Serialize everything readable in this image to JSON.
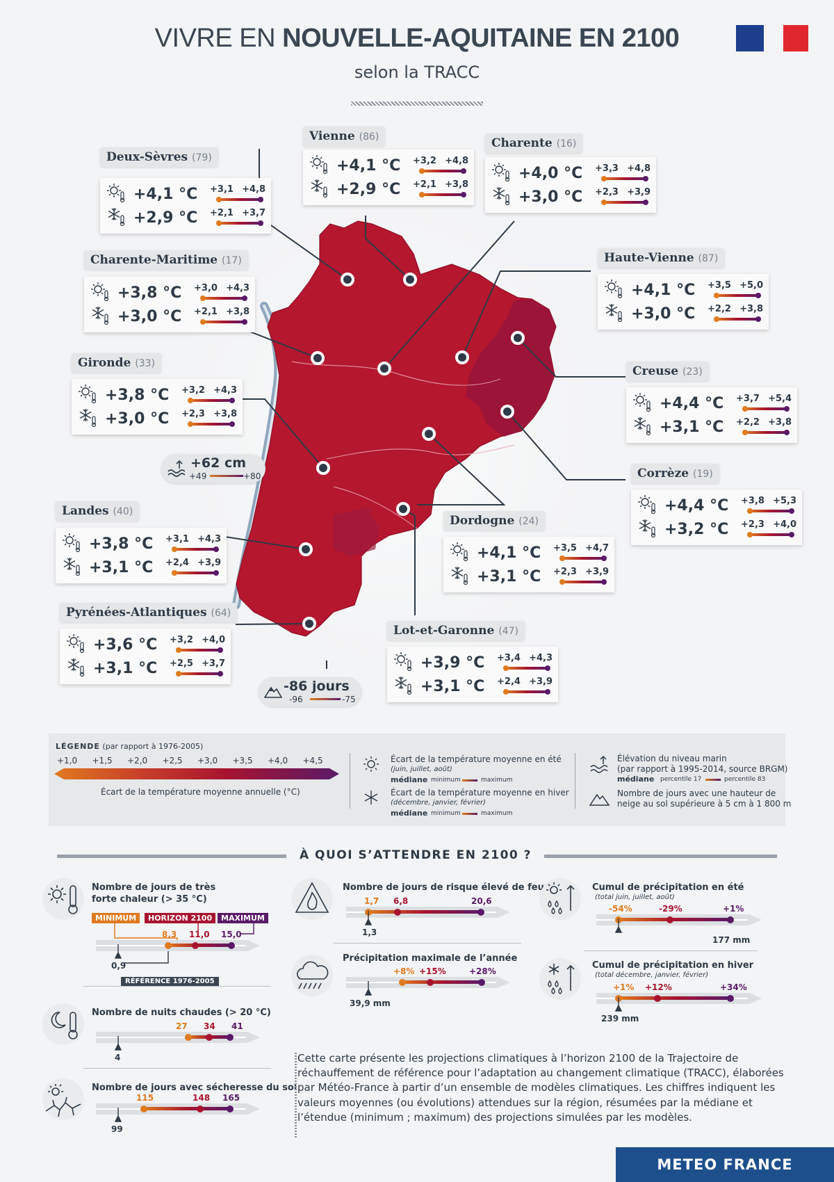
{
  "header": {
    "title_light": "VIVRE EN",
    "title_bold": "NOUVELLE-AQUITAINE EN 2100",
    "subtitle": "selon la TRACC"
  },
  "departments": [
    {
      "name": "Deux-Sèvres",
      "num": "(79)",
      "summer": "+4,1 °C",
      "summer_min": "+3,1",
      "summer_max": "+4,8",
      "winter": "+2,9 °C",
      "winter_min": "+2,1",
      "winter_max": "+3,7"
    },
    {
      "name": "Vienne",
      "num": "(86)",
      "summer": "+4,1 °C",
      "summer_min": "+3,2",
      "summer_max": "+4,8",
      "winter": "+2,9 °C",
      "winter_min": "+2,1",
      "winter_max": "+3,8"
    },
    {
      "name": "Charente",
      "num": "(16)",
      "summer": "+4,0 °C",
      "summer_min": "+3,3",
      "summer_max": "+4,8",
      "winter": "+3,0 °C",
      "winter_min": "+2,3",
      "winter_max": "+3,9"
    },
    {
      "name": "Charente-Maritime",
      "num": "(17)",
      "summer": "+3,8 °C",
      "summer_min": "+3,0",
      "summer_max": "+4,3",
      "winter": "+3,0 °C",
      "winter_min": "+2,1",
      "winter_max": "+3,8"
    },
    {
      "name": "Haute-Vienne",
      "num": "(87)",
      "summer": "+4,1 °C",
      "summer_min": "+3,5",
      "summer_max": "+5,0",
      "winter": "+3,0 °C",
      "winter_min": "+2,2",
      "winter_max": "+3,8"
    },
    {
      "name": "Gironde",
      "num": "(33)",
      "summer": "+3,8 °C",
      "summer_min": "+3,2",
      "summer_max": "+4,3",
      "winter": "+3,0 °C",
      "winter_min": "+2,3",
      "winter_max": "+3,8"
    },
    {
      "name": "Creuse",
      "num": "(23)",
      "summer": "+4,4 °C",
      "summer_min": "+3,7",
      "summer_max": "+5,4",
      "winter": "+3,1 °C",
      "winter_min": "+2,2",
      "winter_max": "+3,8"
    },
    {
      "name": "Corrèze",
      "num": "(19)",
      "summer": "+4,4 °C",
      "summer_min": "+3,8",
      "summer_max": "+5,3",
      "winter": "+3,2 °C",
      "winter_min": "+2,3",
      "winter_max": "+4,0"
    },
    {
      "name": "Landes",
      "num": "(40)",
      "summer": "+3,8 °C",
      "summer_min": "+3,1",
      "summer_max": "+4,3",
      "winter": "+3,1 °C",
      "winter_min": "+2,4",
      "winter_max": "+3,9"
    },
    {
      "name": "Dordogne",
      "num": "(24)",
      "summer": "+4,1 °C",
      "summer_min": "+3,5",
      "summer_max": "+4,7",
      "winter": "+3,1 °C",
      "winter_min": "+2,3",
      "winter_max": "+3,9"
    },
    {
      "name": "Pyrénées-Atlantiques",
      "num": "(64)",
      "summer": "+3,6 °C",
      "summer_min": "+3,2",
      "summer_max": "+4,0",
      "winter": "+3,1 °C",
      "winter_min": "+2,5",
      "winter_max": "+3,7"
    },
    {
      "name": "Lot-et-Garonne",
      "num": "(47)",
      "summer": "+3,9 °C",
      "summer_min": "+3,4",
      "summer_max": "+4,3",
      "winter": "+3,1 °C",
      "winter_min": "+2,4",
      "winter_max": "+3,9"
    }
  ],
  "sea_level": {
    "value": "+62 cm",
    "low": "+49",
    "high": "+80"
  },
  "snow_days": {
    "value": "-86 jours",
    "low": "-96",
    "high": "-75"
  },
  "legend": {
    "title": "LÉGENDE",
    "title_note": "(par rapport à 1976-2005)",
    "scale_ticks": [
      "+1,0",
      "+1,5",
      "+2,0",
      "+2,5",
      "+3,0",
      "+3,5",
      "+4,0",
      "+4,5"
    ],
    "scale_caption": "Écart de la température moyenne annuelle (°C)",
    "summer_label": "Écart de la température moyenne en été",
    "summer_months": "(juin, juillet, août)",
    "winter_label": "Écart de la température moyenne en hiver",
    "winter_months": "(décembre, janvier, février)",
    "mediane": "médiane",
    "minimum": "minimum",
    "maximum": "maximum",
    "sea_label": "Élévation du niveau marin",
    "sea_note": "(par rapport à 1995-2014, source BRGM)",
    "p17": "percentile 17",
    "p83": "percentile 83",
    "snow_label_1": "Nombre de jours avec une hauteur de",
    "snow_label_2": "neige au sol supérieure à 5 cm à 1 800 m"
  },
  "section_title": "À QUOI S’ATTENDRE EN 2100 ?",
  "indicators": {
    "heat": {
      "title_1": "Nombre de jours de très",
      "title_2": "forte chaleur (> 35 °C)",
      "tag_min": "MINIMUM",
      "tag_med": "HORIZON 2100",
      "tag_max": "MAXIMUM",
      "min": "8,3",
      "med": "11,0",
      "max": "15,0",
      "ref": "0,9",
      "ref_label": "RÉFÉRENCE 1976-2005"
    },
    "nights": {
      "title": "Nombre de nuits chaudes (> 20 °C)",
      "min": "27",
      "med": "34",
      "max": "41",
      "ref": "4"
    },
    "drought": {
      "title": "Nombre de jours avec sécheresse du sol",
      "min": "115",
      "med": "148",
      "max": "165",
      "ref": "99"
    },
    "fire": {
      "title": "Nombre de jours de risque élevé de feux",
      "min": "1,7",
      "med": "6,8",
      "max": "20,6",
      "ref": "1,3"
    },
    "maxprecip": {
      "title": "Précipitation maximale de l’année",
      "min": "+8%",
      "med": "+15%",
      "max": "+28%",
      "ref": "39,9 mm"
    },
    "summer_precip": {
      "title": "Cumul de précipitation en été",
      "sub": "(total juin, juillet, août)",
      "min": "-54%",
      "med": "-29%",
      "max": "+1%",
      "ref": "177 mm"
    },
    "winter_precip": {
      "title": "Cumul de précipitation en hiver",
      "sub": "(total décembre, janvier, février)",
      "min": "+1%",
      "med": "+12%",
      "max": "+34%",
      "ref": "239 mm"
    }
  },
  "description": "Cette carte présente les projections climatiques à l’horizon 2100 de la Trajectoire de réchauffement de référence pour l’adaptation au changement climatique (TRACC), élaborées par Météo-France à partir d’un ensemble de modèles climatiques. Les chiffres indiquent les valeurs moyennes (ou évolutions) attendues sur la région, résumées par la médiane et l’étendue (minimum ; maximum) des projections simulées par les modèles.",
  "footer": "METEO FRANCE",
  "colors": {
    "region": "#b5172f",
    "summer_min": "#e07a1e",
    "median": "#a8142f",
    "max": "#5a1a68",
    "footer": "#1d4f8c"
  }
}
